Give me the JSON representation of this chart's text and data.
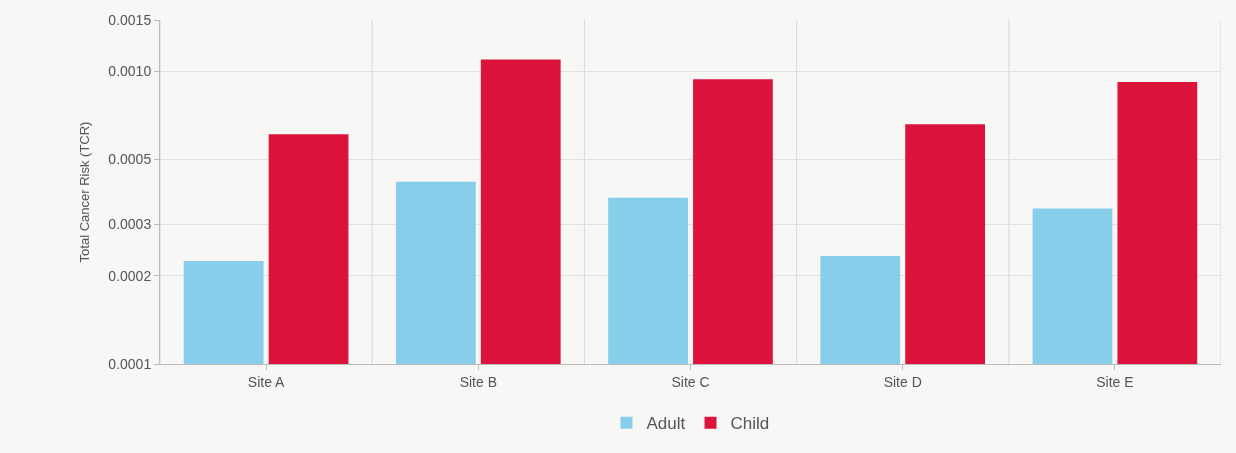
{
  "chart_data": {
    "type": "bar",
    "ylabel": "Total Cancer Risk (TCR)",
    "categories": [
      "Site A",
      "Site B",
      "Site C",
      "Site D",
      "Site E"
    ],
    "series": [
      {
        "name": "Adult",
        "color": "#87ceeb",
        "values": [
          0.000225,
          0.00042,
          0.00037,
          0.000234,
          0.00034
        ]
      },
      {
        "name": "Child",
        "color": "#dc143c",
        "values": [
          0.00061,
          0.0011,
          0.00094,
          0.00066,
          0.00092
        ]
      }
    ],
    "log": true,
    "ylim": [
      0.0001,
      0.0015
    ],
    "yticks": [
      {
        "value": 0.0001,
        "label": "0.0001"
      },
      {
        "value": 0.0002,
        "label": "0.0002"
      },
      {
        "value": 0.0003,
        "label": "0.0003"
      },
      {
        "value": 0.0005,
        "label": "0.0005"
      },
      {
        "value": 0.001,
        "label": "0.0010"
      },
      {
        "value": 0.0015,
        "label": "0.0015"
      }
    ],
    "grid": true,
    "legend": "bottom"
  }
}
